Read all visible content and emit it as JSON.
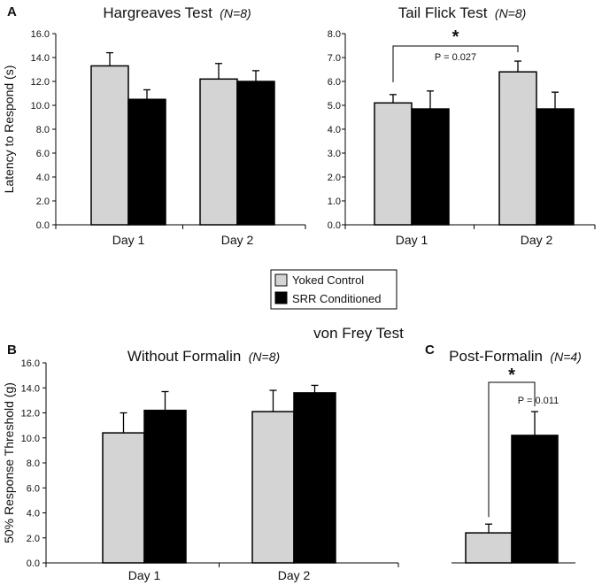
{
  "colors": {
    "control": "#d4d4d4",
    "srr": "#000000",
    "axis": "#000000"
  },
  "legend": {
    "control_label": "Yoked Control",
    "srr_label": "SRR Conditioned"
  },
  "section_title": "von Frey Test",
  "y_label_top": "Latency to Respond (s)",
  "y_label_bottom": "50% Response Threshold (g)",
  "chart_data": [
    {
      "panel": "A",
      "type": "bar",
      "title": "Hargreaves Test",
      "title_n": "(N=8)",
      "categories": [
        "Day 1",
        "Day 2"
      ],
      "ylim": [
        0,
        16
      ],
      "ytick_step": 2,
      "yticks": [
        "0.0",
        "2.0",
        "4.0",
        "6.0",
        "8.0",
        "10.0",
        "12.0",
        "14.0",
        "16.0"
      ],
      "series": [
        {
          "name": "Yoked Control",
          "values": [
            13.3,
            12.2
          ],
          "errors": [
            1.1,
            1.3
          ]
        },
        {
          "name": "SRR Conditioned",
          "values": [
            10.5,
            12.0
          ],
          "errors": [
            0.8,
            0.9
          ]
        }
      ]
    },
    {
      "panel": "",
      "type": "bar",
      "title": "Tail Flick Test",
      "title_n": "(N=8)",
      "categories": [
        "Day 1",
        "Day 2"
      ],
      "ylim": [
        0,
        8
      ],
      "ytick_step": 1,
      "yticks": [
        "0.0",
        "1.0",
        "2.0",
        "3.0",
        "4.0",
        "5.0",
        "6.0",
        "7.0",
        "8.0"
      ],
      "series": [
        {
          "name": "Yoked Control",
          "values": [
            5.1,
            6.4
          ],
          "errors": [
            0.35,
            0.45
          ]
        },
        {
          "name": "SRR Conditioned",
          "values": [
            4.85,
            4.85
          ],
          "errors": [
            0.75,
            0.7
          ]
        }
      ],
      "significance": {
        "star": "*",
        "p_text": "P = 0.027"
      }
    },
    {
      "panel": "B",
      "type": "bar",
      "title": "Without Formalin",
      "title_n": "(N=8)",
      "categories": [
        "Day 1",
        "Day 2"
      ],
      "ylim": [
        0,
        16
      ],
      "ytick_step": 2,
      "yticks": [
        "0.0",
        "2.0",
        "4.0",
        "6.0",
        "8.0",
        "10.0",
        "12.0",
        "14.0",
        "16.0"
      ],
      "series": [
        {
          "name": "Yoked Control",
          "values": [
            10.4,
            12.1
          ],
          "errors": [
            1.6,
            1.7
          ]
        },
        {
          "name": "SRR Conditioned",
          "values": [
            12.2,
            13.6
          ],
          "errors": [
            1.5,
            0.6
          ]
        }
      ]
    },
    {
      "panel": "C",
      "type": "bar",
      "title": "Post-Formalin",
      "title_n": "(N=4)",
      "categories": [
        ""
      ],
      "ylim": [
        0,
        16
      ],
      "ytick_step": 2,
      "yticks": [],
      "series": [
        {
          "name": "Yoked Control",
          "values": [
            2.4
          ],
          "errors": [
            0.7
          ]
        },
        {
          "name": "SRR Conditioned",
          "values": [
            10.2
          ],
          "errors": [
            1.9
          ]
        }
      ],
      "significance": {
        "star": "*",
        "p_text": "P = 0.011"
      }
    }
  ]
}
